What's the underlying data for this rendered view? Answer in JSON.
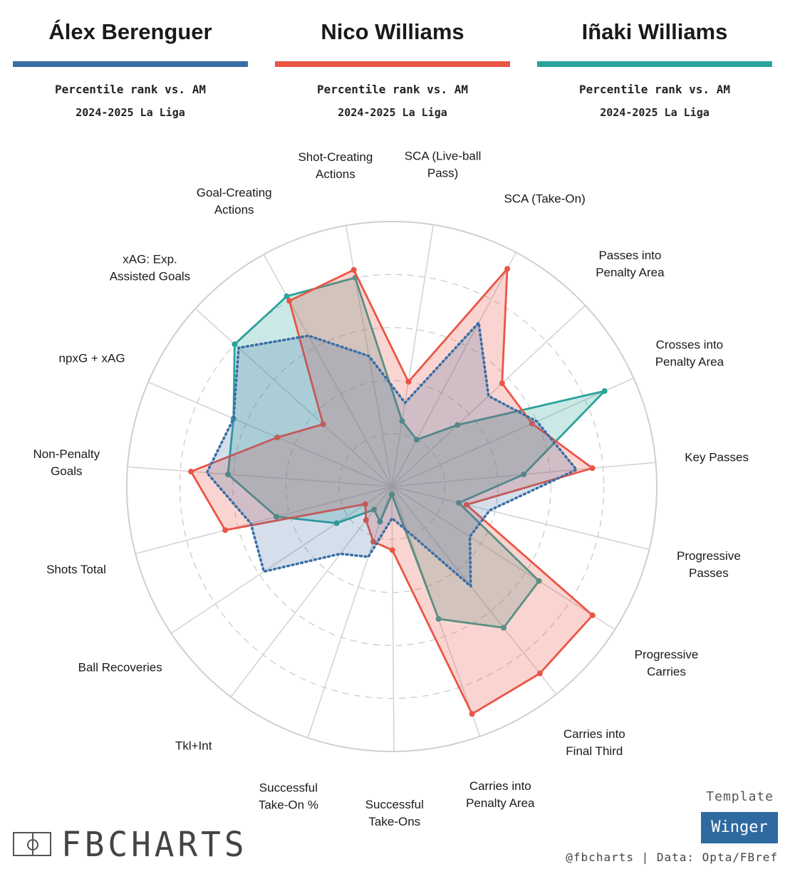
{
  "players": [
    {
      "name": "Álex Berenguer",
      "color": "#3a6ea5",
      "subtitle": "Percentile rank vs. AM",
      "season": "2024-2025 La Liga"
    },
    {
      "name": "Nico Williams",
      "color": "#ea5545",
      "subtitle": "Percentile rank vs. AM",
      "season": "2024-2025 La Liga"
    },
    {
      "name": "Iñaki Williams",
      "color": "#2aa39a",
      "subtitle": "Percentile rank vs. AM",
      "season": "2024-2025 La Liga"
    }
  ],
  "chart_data": {
    "type": "radar",
    "scale": [
      0,
      100
    ],
    "grid": true,
    "categories": [
      "SCA (Live-ball Pass)",
      "SCA (Take-On)",
      "Passes into Penalty Area",
      "Crosses into Penalty Area",
      "Key Passes",
      "Progressive Passes",
      "Progressive Carries",
      "Carries into Final Third",
      "Carries into Penalty Area",
      "Successful Take-Ons",
      "Successful Take-On %",
      "Tkl+Int",
      "Ball Recoveries",
      "Shots Total",
      "Non-Penalty Goals",
      "npxG + xAG",
      "xAG: Exp. Assisted Goals",
      "Goal-Creating Actions",
      "Shot-Creating Actions"
    ],
    "series": [
      {
        "name": "Álex Berenguer",
        "color": "#3a6ea5",
        "style": "dotted",
        "values": [
          32,
          70,
          50,
          60,
          70,
          38,
          35,
          48,
          18,
          12,
          28,
          32,
          58,
          55,
          70,
          65,
          78,
          65,
          50
        ]
      },
      {
        "name": "Nico Williams",
        "color": "#ea5545",
        "style": "solid",
        "values": [
          40,
          93,
          57,
          58,
          76,
          29,
          90,
          90,
          91,
          24,
          22,
          16,
          12,
          65,
          76,
          47,
          35,
          80,
          83
        ]
      },
      {
        "name": "Iñaki Williams",
        "color": "#2aa39a",
        "style": "solid",
        "values": [
          25,
          20,
          34,
          88,
          50,
          26,
          66,
          68,
          53,
          3,
          14,
          11,
          25,
          45,
          62,
          65,
          80,
          82,
          80
        ]
      }
    ]
  },
  "template": {
    "label": "Template",
    "badge": "Winger"
  },
  "credit": "@fbcharts | Data: Opta/FBref",
  "logo": {
    "text": "FBCHARTS",
    "icon": "pitch-icon"
  }
}
